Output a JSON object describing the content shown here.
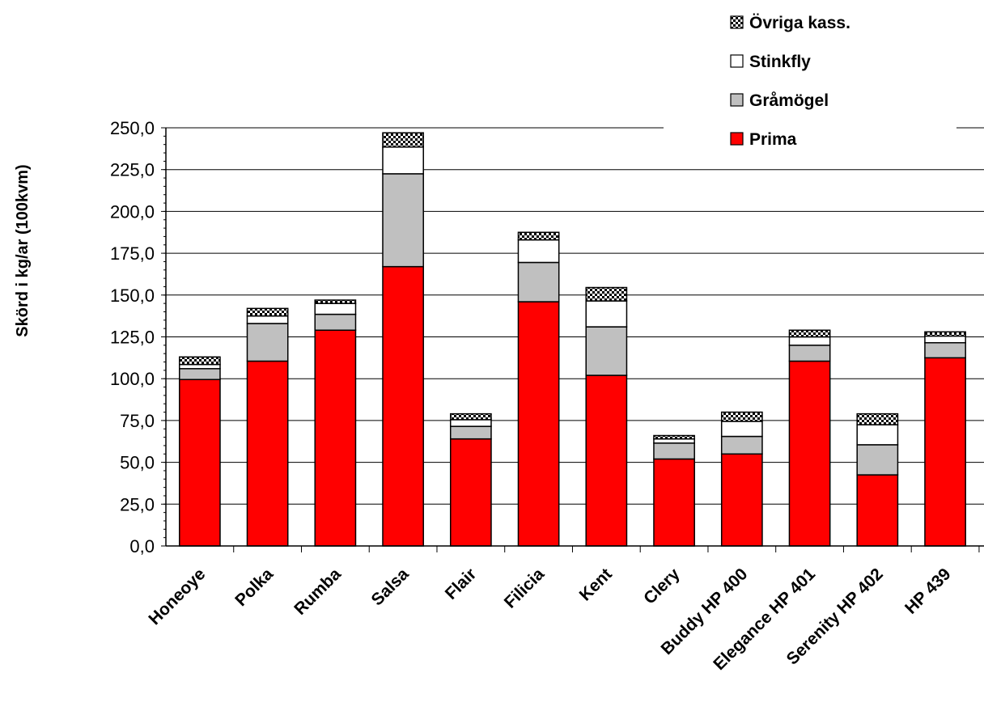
{
  "chart_data": {
    "type": "bar",
    "stacked": true,
    "ylabel": "Skörd i kg/ar (100kvm)",
    "xlabel": "",
    "ylim": [
      0,
      250
    ],
    "yticks": [
      "0,0",
      "25,0",
      "50,0",
      "75,0",
      "100,0",
      "125,0",
      "150,0",
      "175,0",
      "200,0",
      "225,0",
      "250,0"
    ],
    "grid": true,
    "legend_position": "top-right",
    "categories": [
      "Honeoye",
      "Polka",
      "Rumba",
      "Salsa",
      "Flair",
      "Filicia",
      "Kent",
      "Clery",
      "Buddy HP 400",
      "Elegance HP 401",
      "Serenity HP 402",
      "HP 439"
    ],
    "series": [
      {
        "name": "Prima",
        "color": "#ff0000",
        "pattern": "solid",
        "values": [
          99.5,
          110.5,
          129,
          167,
          64,
          146,
          102,
          52,
          55,
          110.5,
          42.5,
          112.5
        ]
      },
      {
        "name": "Gråmögel",
        "color": "#c0c0c0",
        "pattern": "solid",
        "values": [
          6.5,
          22.5,
          9.5,
          55.5,
          7.5,
          23.5,
          29,
          9.5,
          10.5,
          9.5,
          18,
          9
        ]
      },
      {
        "name": "Stinkfly",
        "color": "#ffffff",
        "pattern": "solid",
        "values": [
          2.5,
          4.5,
          6.5,
          16,
          4,
          13.5,
          15.5,
          2.5,
          9,
          5,
          12,
          4
        ]
      },
      {
        "name": "Övriga kass.",
        "color": "#808080",
        "pattern": "checker",
        "values": [
          4.5,
          4.5,
          2,
          8.5,
          3.5,
          4.5,
          8,
          2,
          5.5,
          4,
          6.5,
          2.5
        ]
      }
    ],
    "legend_order": [
      "Övriga kass.",
      "Stinkfly",
      "Gråmögel",
      "Prima"
    ]
  }
}
